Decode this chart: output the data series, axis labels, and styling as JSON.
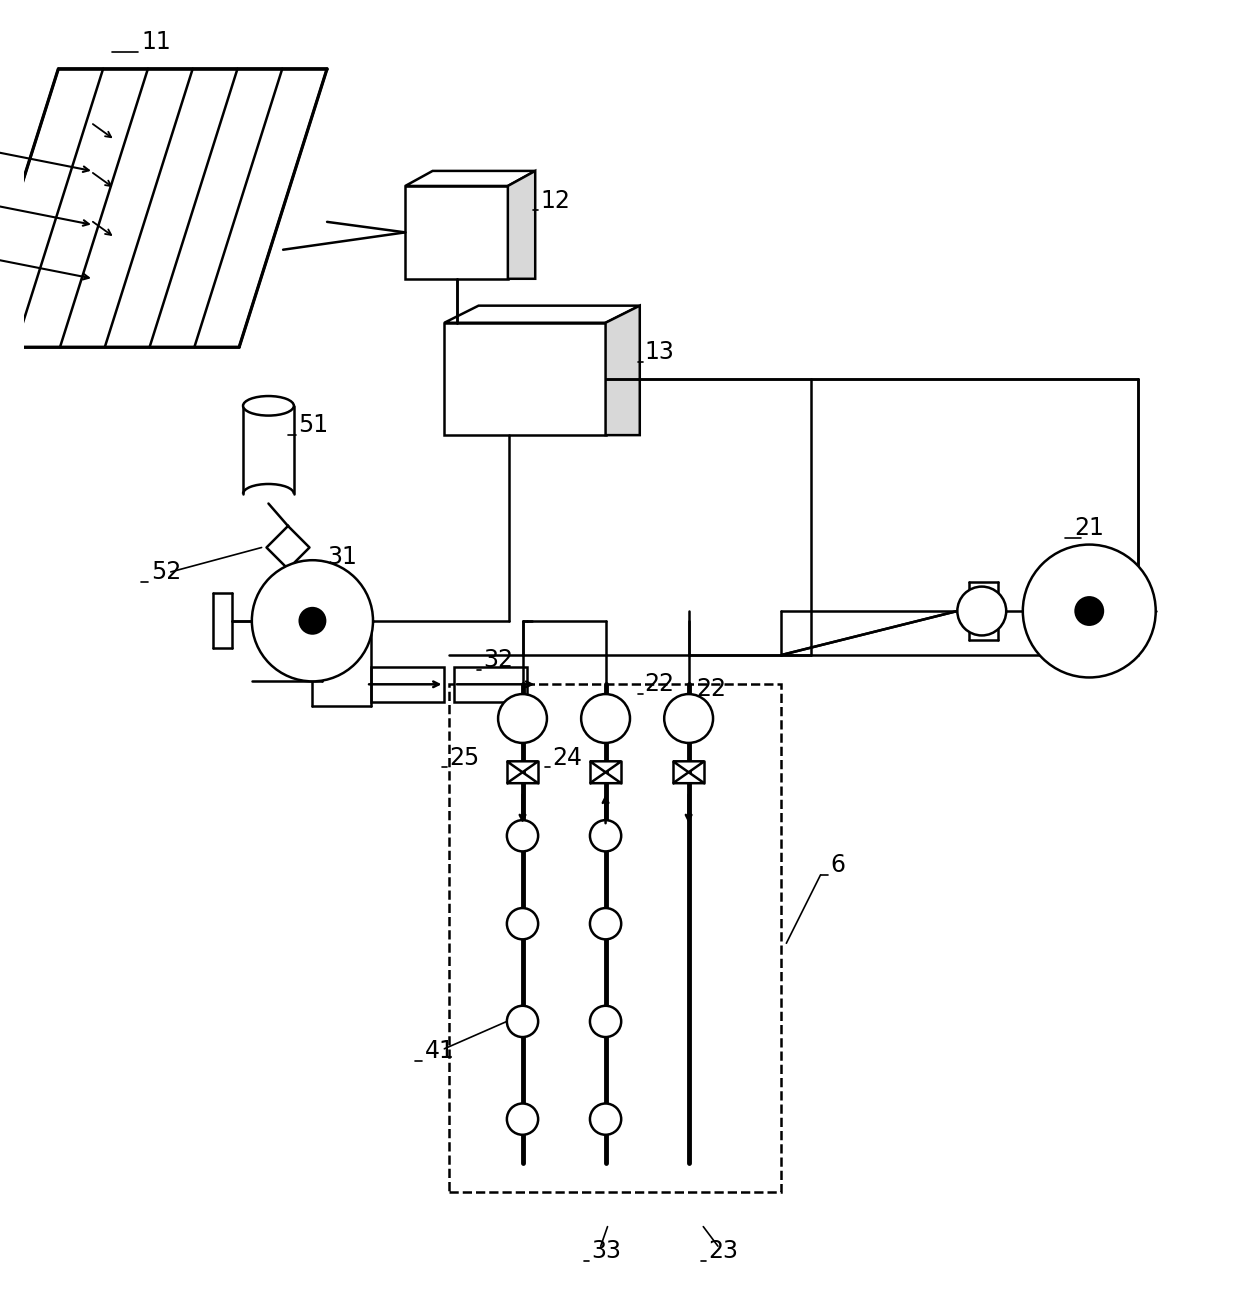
{
  "bg_color": "#ffffff",
  "lc": "#000000",
  "lw": 1.8,
  "fig_w": 12.4,
  "fig_h": 13.09,
  "dpi": 100
}
